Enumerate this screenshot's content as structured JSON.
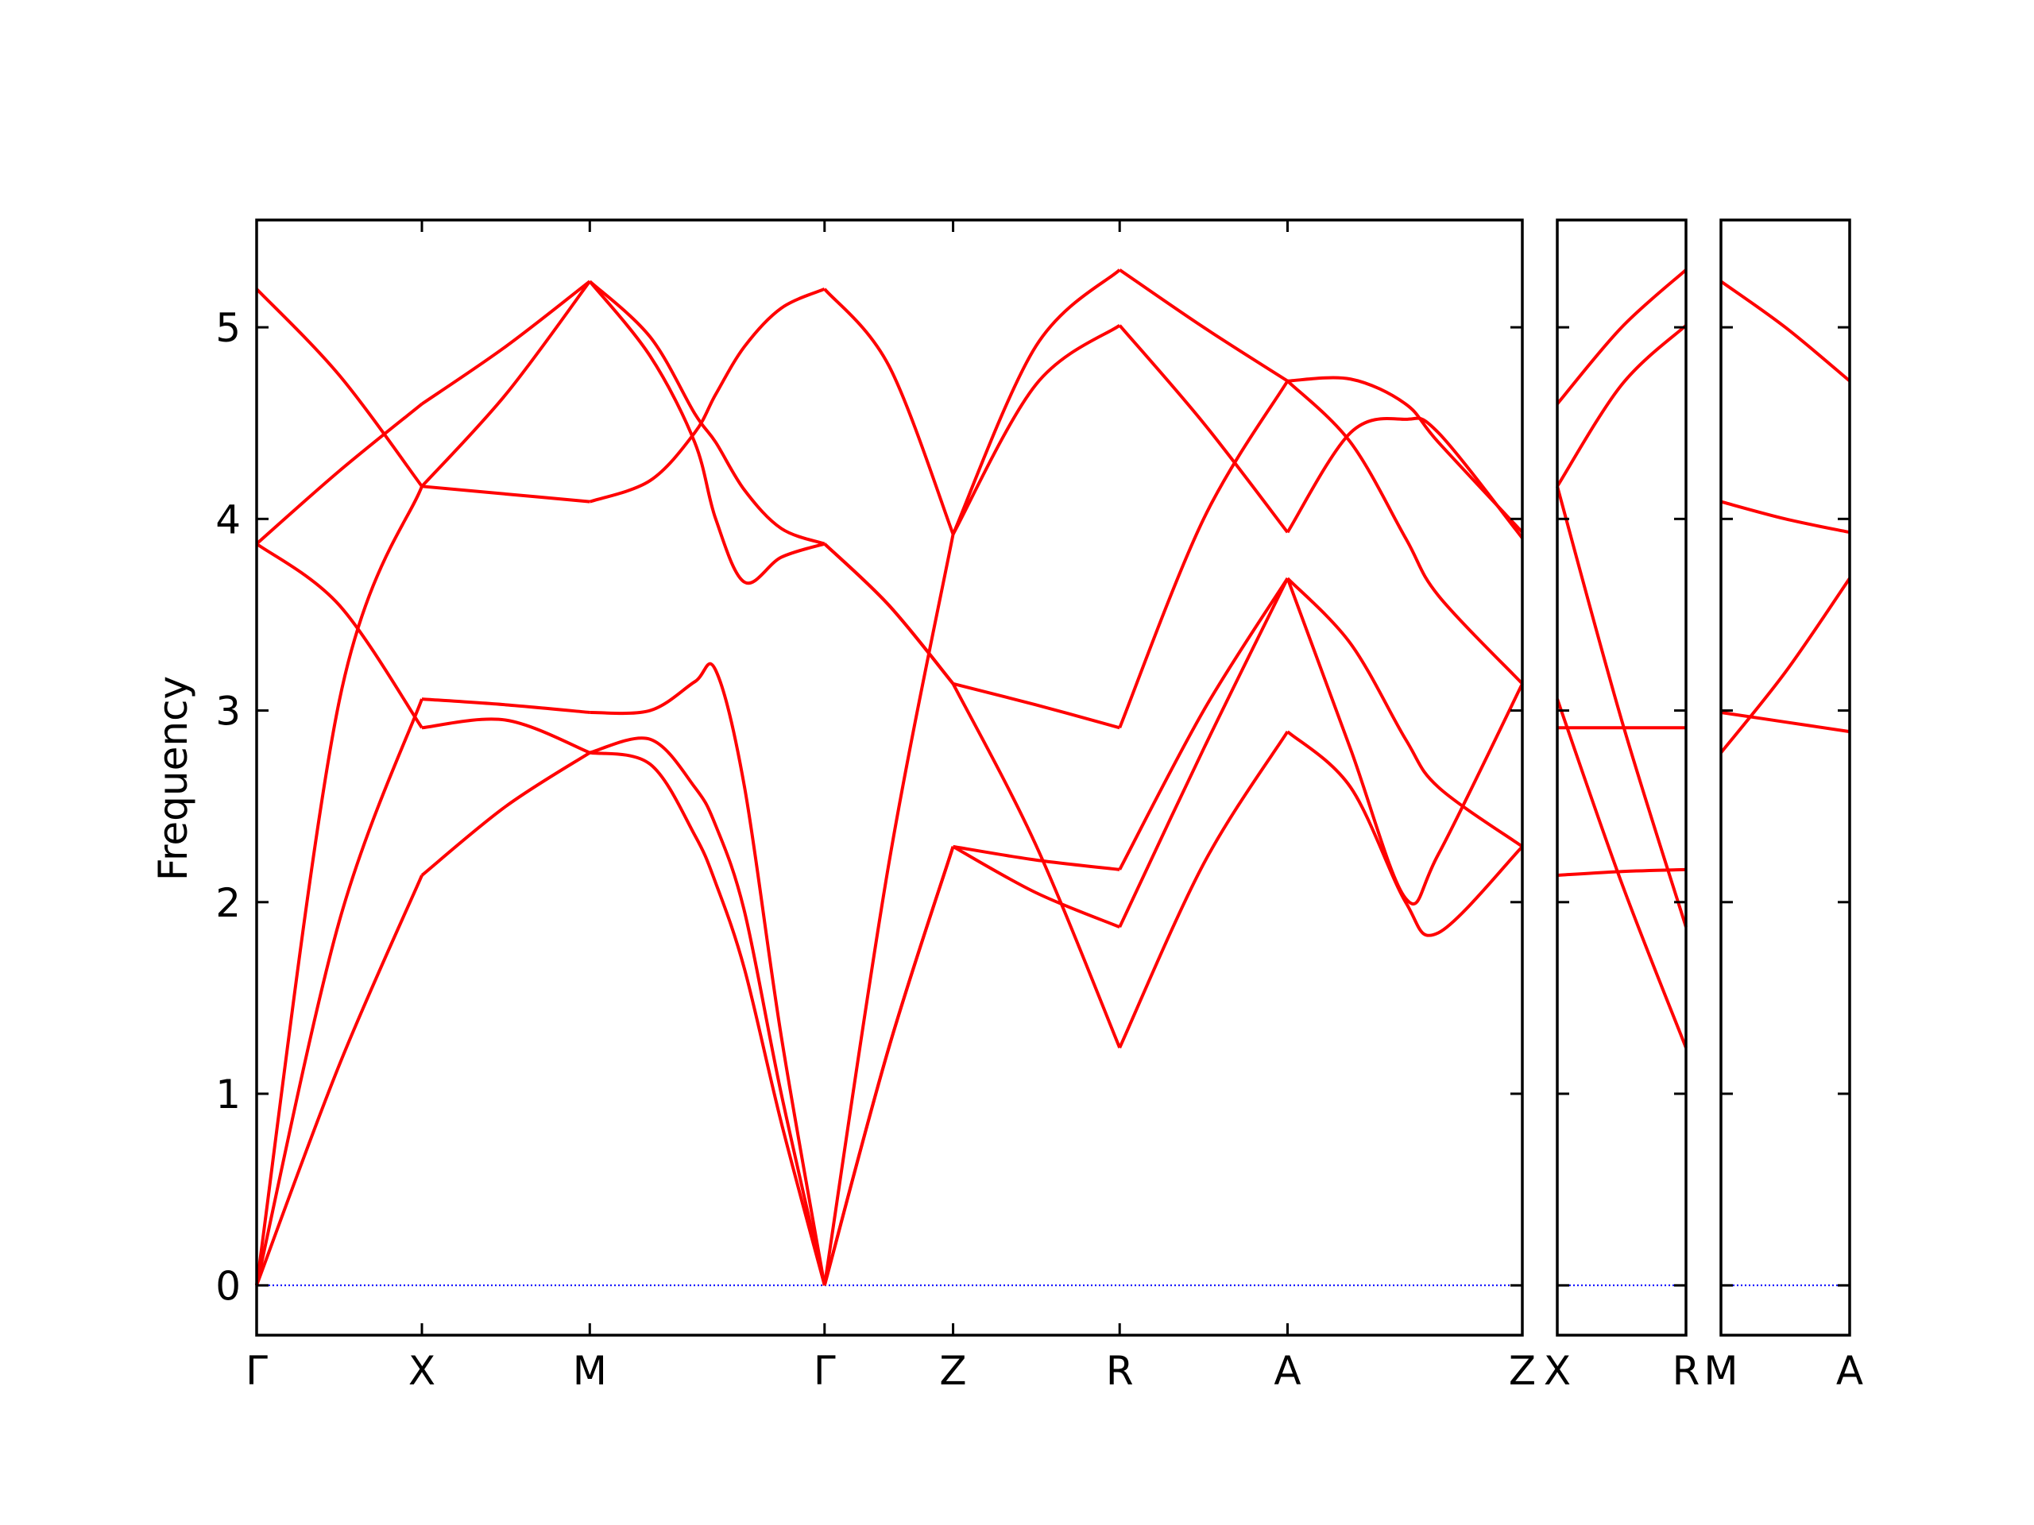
{
  "chart_data": [
    {
      "type": "line",
      "ylabel": "Frequency",
      "color": "#ff0000",
      "zero_line": {
        "value": 0,
        "color": "#0000ff",
        "style": "dotted"
      },
      "xlim": [
        0,
        9.65
      ],
      "ylim": [
        -0.26,
        5.56
      ],
      "yticks": [
        0,
        1,
        2,
        3,
        4,
        5
      ],
      "xticks": [
        {
          "value": 0,
          "label": "Γ"
        },
        {
          "value": 1.26,
          "label": "X"
        },
        {
          "value": 2.54,
          "label": "M"
        },
        {
          "value": 4.33,
          "label": "Γ"
        },
        {
          "value": 5.31,
          "label": "Z"
        },
        {
          "value": 6.58,
          "label": "R"
        },
        {
          "value": 7.86,
          "label": "A"
        },
        {
          "value": 9.65,
          "label": "Z"
        }
      ],
      "segments": [
        {
          "x": [
            0,
            0.63,
            1.26
          ],
          "bands": [
            [
              5.2,
              4.75,
              4.17
            ],
            [
              3.87,
              4.25,
              4.6
            ],
            [
              3.87,
              3.55,
              2.91
            ],
            [
              0,
              3.05,
              4.17
            ],
            [
              0,
              1.9,
              3.06
            ],
            [
              0,
              1.15,
              2.14
            ]
          ]
        },
        {
          "x": [
            1.26,
            1.9,
            2.54
          ],
          "bands": [
            [
              4.6,
              4.9,
              5.24
            ],
            [
              4.17,
              4.65,
              5.24
            ],
            [
              4.17,
              4.13,
              4.09
            ],
            [
              3.06,
              3.03,
              2.99
            ],
            [
              2.91,
              2.95,
              2.78
            ],
            [
              2.14,
              2.5,
              2.78
            ]
          ]
        },
        {
          "x": [
            2.54,
            3.0,
            3.34,
            3.5,
            3.72,
            4.0,
            4.33
          ],
          "bands": [
            [
              5.24,
              4.85,
              4.4,
              4.0,
              3.67,
              3.8,
              3.87
            ],
            [
              5.24,
              4.95,
              4.55,
              4.4,
              4.15,
              3.95,
              3.87
            ],
            [
              4.09,
              4.2,
              4.45,
              4.65,
              4.9,
              5.1,
              5.2
            ],
            [
              2.99,
              3.0,
              3.15,
              3.21,
              2.6,
              1.3,
              0
            ],
            [
              2.78,
              2.72,
              2.35,
              2.1,
              1.65,
              0.85,
              0
            ],
            [
              2.78,
              2.85,
              2.6,
              2.4,
              1.95,
              1.0,
              0
            ]
          ]
        },
        {
          "x": [
            4.33,
            4.82,
            5.31
          ],
          "bands": [
            [
              5.2,
              4.8,
              3.92
            ],
            [
              3.87,
              3.55,
              3.14
            ],
            [
              3.87,
              3.55,
              3.14
            ],
            [
              0,
              2.2,
              3.92
            ],
            [
              0,
              1.24,
              2.29
            ],
            [
              0,
              1.24,
              2.29
            ]
          ]
        },
        {
          "x": [
            5.31,
            5.94,
            6.58
          ],
          "bands": [
            [
              3.92,
              4.9,
              5.3
            ],
            [
              3.92,
              4.7,
              5.01
            ],
            [
              3.14,
              3.03,
              2.91
            ],
            [
              3.14,
              2.3,
              1.24
            ],
            [
              2.29,
              2.22,
              2.17
            ],
            [
              2.29,
              2.05,
              1.87
            ]
          ]
        },
        {
          "x": [
            6.58,
            7.22,
            7.86
          ],
          "bands": [
            [
              5.3,
              5.0,
              4.72
            ],
            [
              5.01,
              4.5,
              3.93
            ],
            [
              2.91,
              4.0,
              4.72
            ],
            [
              2.17,
              3.0,
              3.69
            ],
            [
              1.87,
              2.8,
              3.69
            ],
            [
              1.24,
              2.2,
              2.89
            ]
          ]
        },
        {
          "x": [
            7.86,
            8.34,
            8.76,
            9.01,
            9.65
          ],
          "bands": [
            [
              4.72,
              4.73,
              4.6,
              4.4,
              3.93
            ],
            [
              4.72,
              4.4,
              3.9,
              3.6,
              3.14
            ],
            [
              3.93,
              4.45,
              4.52,
              4.45,
              3.9
            ],
            [
              3.69,
              2.8,
              2.02,
              2.25,
              3.14
            ],
            [
              3.69,
              3.35,
              2.85,
              2.6,
              2.29
            ],
            [
              2.89,
              2.6,
              2.0,
              1.84,
              2.29
            ]
          ]
        }
      ]
    },
    {
      "type": "line",
      "color": "#ff0000",
      "zero_line": {
        "value": 0,
        "color": "#0000ff",
        "style": "dotted"
      },
      "xlim": [
        0,
        0.98
      ],
      "ylim": [
        -0.26,
        5.56
      ],
      "yticks": [
        0,
        1,
        2,
        3,
        4,
        5
      ],
      "xticks": [
        {
          "value": 0,
          "label": "X"
        },
        {
          "value": 0.98,
          "label": "R"
        }
      ],
      "segments": [
        {
          "x": [
            0,
            0.49,
            0.98
          ],
          "bands": [
            [
              4.6,
              5.0,
              5.3
            ],
            [
              4.17,
              4.7,
              5.01
            ],
            [
              4.17,
              2.95,
              1.87
            ],
            [
              3.06,
              2.1,
              1.24
            ],
            [
              2.91,
              2.91,
              2.91
            ],
            [
              2.14,
              2.16,
              2.17
            ]
          ]
        }
      ]
    },
    {
      "type": "line",
      "color": "#ff0000",
      "zero_line": {
        "value": 0,
        "color": "#0000ff",
        "style": "dotted"
      },
      "xlim": [
        0,
        0.98
      ],
      "ylim": [
        -0.26,
        5.56
      ],
      "yticks": [
        0,
        1,
        2,
        3,
        4,
        5
      ],
      "xticks": [
        {
          "value": 0,
          "label": "M"
        },
        {
          "value": 0.98,
          "label": "A"
        }
      ],
      "segments": [
        {
          "x": [
            0,
            0.49,
            0.98
          ],
          "bands": [
            [
              5.24,
              5.0,
              4.72
            ],
            [
              4.09,
              4.0,
              3.93
            ],
            [
              2.99,
              2.94,
              2.89
            ],
            [
              2.78,
              3.2,
              3.69
            ]
          ]
        }
      ]
    }
  ]
}
